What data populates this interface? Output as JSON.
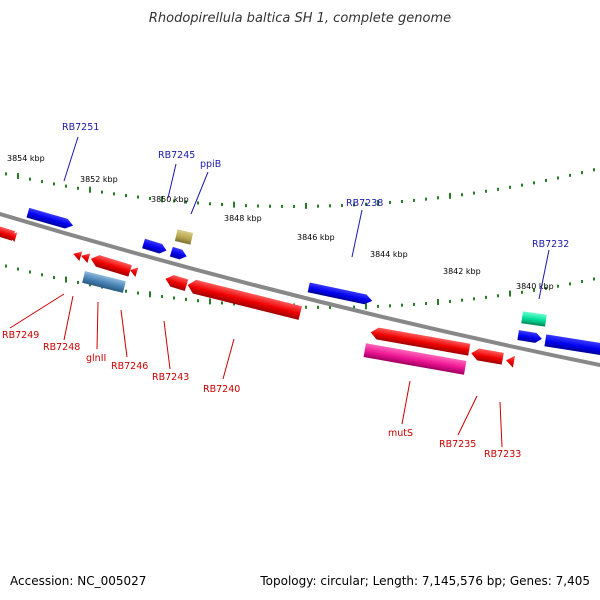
{
  "title": "Rhodopirellula baltica SH 1, complete genome",
  "footer": {
    "accession": "Accession: NC_005027",
    "summary": "Topology: circular; Length: 7,145,576 bp; Genes: 7,405"
  },
  "colors": {
    "backbone": "#888888",
    "tick": "#2a7a2a",
    "forward_label": "#1a1aaa",
    "reverse_label": "#cc0000"
  },
  "kbp_ticks": [
    "3854 kbp",
    "3852 kbp",
    "3850 kbp",
    "3848 kbp",
    "3846 kbp",
    "3844 kbp",
    "3842 kbp",
    "3840 kbp"
  ],
  "forward_labels": [
    "RB7251",
    "RB7245",
    "ppiB",
    "RB7238",
    "RB7232"
  ],
  "reverse_labels": [
    "RB7249",
    "RB7248",
    "glnII",
    "RB7246",
    "RB7243",
    "RB7240",
    "mutS",
    "RB7235",
    "RB7233"
  ]
}
